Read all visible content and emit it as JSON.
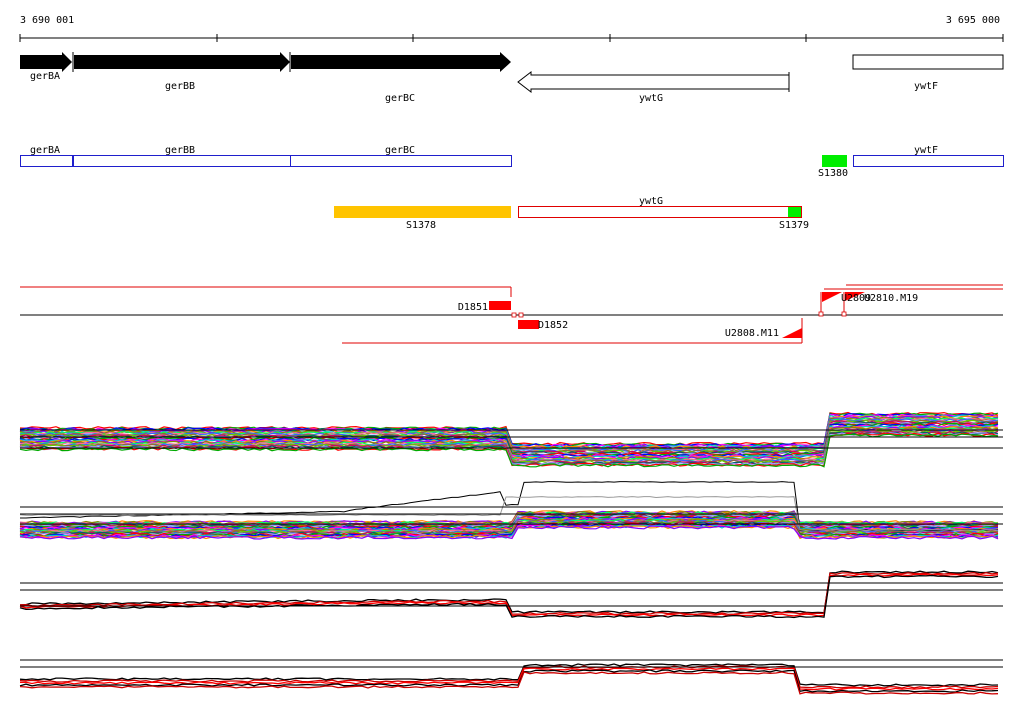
{
  "ruler": {
    "start_label": "3 690 001",
    "end_label": "3 695 000"
  },
  "colors": {
    "black": "#000000",
    "blue": "#1f1fcc",
    "red": "#ff0000",
    "dark_red": "#cc0000",
    "green": "#00ee00",
    "gold": "#ffc400"
  },
  "genes": [
    {
      "name": "gerBA",
      "style": "filled",
      "strand": "+"
    },
    {
      "name": "gerBB",
      "style": "filled",
      "strand": "+"
    },
    {
      "name": "gerBC",
      "style": "filled",
      "strand": "+"
    },
    {
      "name": "ywtG",
      "style": "outline",
      "strand": "-"
    },
    {
      "name": "ywtF",
      "style": "outline",
      "strand": "none"
    }
  ],
  "cds_boxes": [
    {
      "name": "gerBA"
    },
    {
      "name": "gerBB"
    },
    {
      "name": "gerBC"
    },
    {
      "name": "ywtF"
    }
  ],
  "cds_box_ywtG": {
    "name": "ywtG"
  },
  "segments": [
    {
      "name": "S1378",
      "color": "gold"
    },
    {
      "name": "S1379",
      "color": "green"
    },
    {
      "name": "S1380",
      "color": "green"
    }
  ],
  "features": [
    {
      "name": "D1851",
      "kind": "downshift"
    },
    {
      "name": "D1852",
      "kind": "downshift"
    },
    {
      "name": "U2808.M11",
      "kind": "upshift"
    },
    {
      "name": "U2809",
      "kind": "upshift"
    },
    {
      "name": "U2810.M19",
      "kind": "upshift"
    }
  ],
  "expression_panels": [
    {
      "name": "panel-1",
      "series_style": "multicolor"
    },
    {
      "name": "panel-2",
      "series_style": "multicolor"
    },
    {
      "name": "panel-3",
      "series_style": "black-red"
    },
    {
      "name": "panel-4",
      "series_style": "black-red"
    }
  ]
}
